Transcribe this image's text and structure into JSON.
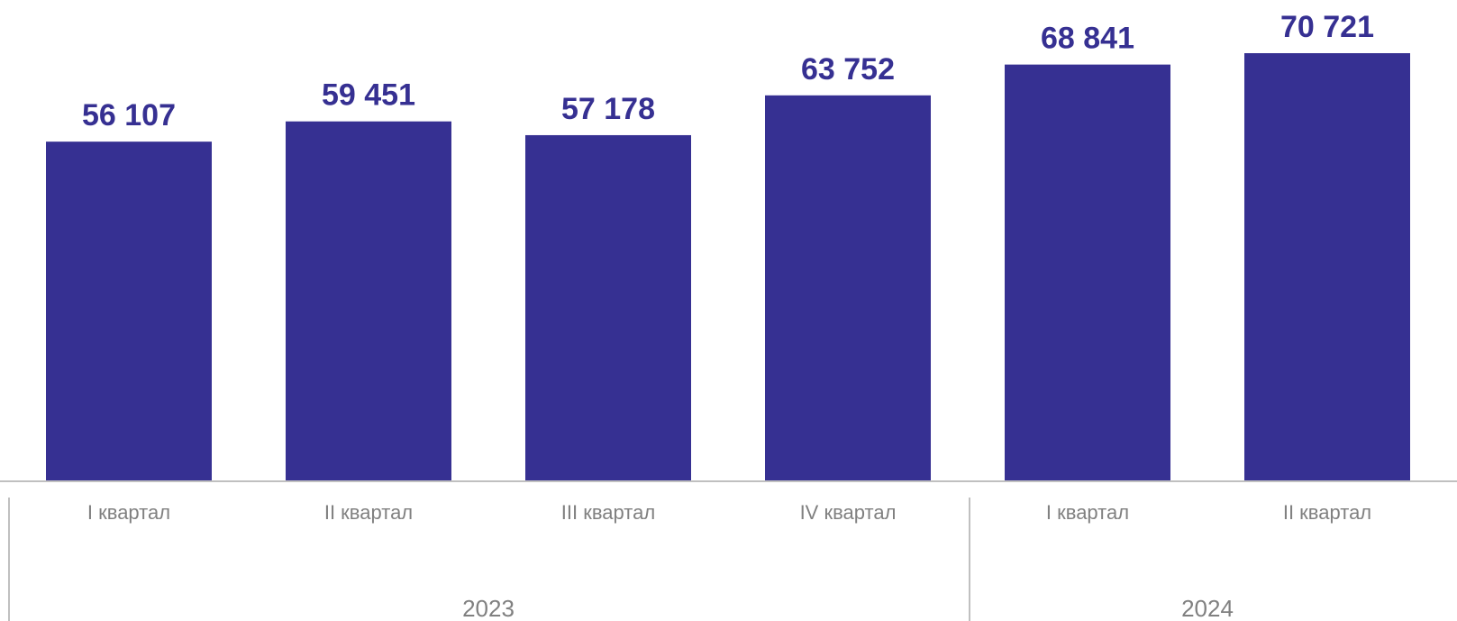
{
  "chart_data": {
    "type": "bar",
    "categories": [
      "I квартал",
      "II квартал",
      "III квартал",
      "IV квартал",
      "I квартал",
      "II квартал"
    ],
    "values": [
      56107,
      59451,
      57178,
      63752,
      68841,
      70721
    ],
    "value_labels": [
      "56 107",
      "59 451",
      "57 178",
      "63 752",
      "68 841",
      "70 721"
    ],
    "groups": [
      {
        "label": "2023",
        "count": 4
      },
      {
        "label": "2024",
        "count": 2
      }
    ],
    "ylim": [
      0,
      70721
    ],
    "grid": false,
    "legend": "none",
    "bar_color": "#363092",
    "axis_color": "#c0c0c0",
    "text_color": "#808080"
  }
}
